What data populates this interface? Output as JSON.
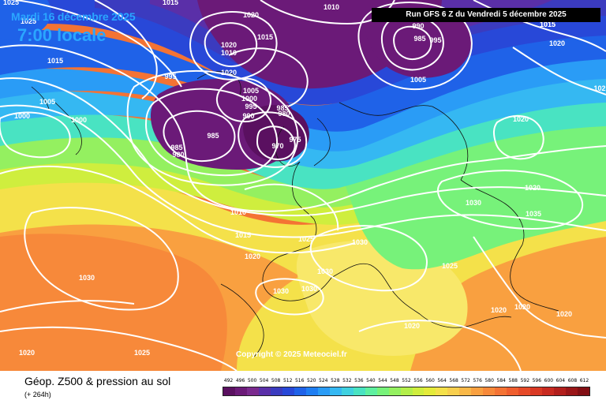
{
  "header": {
    "valid_date": "Mardi 16 décembre 2025",
    "valid_time": "7:00 locale",
    "run_label": "Run GFS 6 Z du Vendredi 5 décembre 2025"
  },
  "footer": {
    "title": "Géop. Z500 & pression au sol",
    "forecast_range": "(+ 264h)",
    "copyright": "Copyright © 2025 Meteociel.fr"
  },
  "legend": {
    "title": "",
    "values": [
      "492",
      "496",
      "500",
      "504",
      "508",
      "512",
      "516",
      "520",
      "524",
      "528",
      "532",
      "536",
      "540",
      "544",
      "548",
      "552",
      "556",
      "560",
      "564",
      "568",
      "572",
      "576",
      "580",
      "584",
      "588",
      "592",
      "596",
      "600",
      "604",
      "608",
      "612"
    ],
    "colors": [
      "#5a1060",
      "#6b1a78",
      "#7a2a8e",
      "#5a2fa8",
      "#3b3bbf",
      "#2848d8",
      "#1f62e8",
      "#1f7ef2",
      "#2a9cf6",
      "#35b8f2",
      "#3fd1e0",
      "#49e3c2",
      "#5ef0a0",
      "#77f27a",
      "#94f060",
      "#b3ef4a",
      "#cfee3e",
      "#e4eb3a",
      "#f4e14a",
      "#f8cf4e",
      "#f9b848",
      "#f9a040",
      "#f7893a",
      "#f47334",
      "#ef5e2e",
      "#e64a28",
      "#d93924",
      "#c82a20",
      "#b21f1c",
      "#9a1618",
      "#820f14"
    ]
  },
  "map": {
    "isobar_labels": [
      {
        "text": "1025"
      },
      {
        "text": "1025"
      },
      {
        "text": "1015"
      },
      {
        "text": "1020"
      },
      {
        "text": "1010"
      },
      {
        "text": "1015"
      },
      {
        "text": "1015"
      },
      {
        "text": "1020"
      },
      {
        "text": "995"
      },
      {
        "text": "1005"
      },
      {
        "text": "1000"
      },
      {
        "text": "1000"
      },
      {
        "text": "1010"
      },
      {
        "text": "1020"
      },
      {
        "text": "1005"
      },
      {
        "text": "1000"
      },
      {
        "text": "995"
      },
      {
        "text": "990"
      },
      {
        "text": "985"
      },
      {
        "text": "980"
      },
      {
        "text": "985"
      },
      {
        "text": "985"
      },
      {
        "text": "980"
      },
      {
        "text": "970"
      },
      {
        "text": "975"
      },
      {
        "text": "990"
      },
      {
        "text": "985"
      },
      {
        "text": "995"
      },
      {
        "text": "1005"
      },
      {
        "text": "1015"
      },
      {
        "text": "1020"
      },
      {
        "text": "1020"
      },
      {
        "text": "1010"
      },
      {
        "text": "1015"
      },
      {
        "text": "1020"
      },
      {
        "text": "1030"
      },
      {
        "text": "1025"
      },
      {
        "text": "1030"
      },
      {
        "text": "1030"
      },
      {
        "text": "1030"
      },
      {
        "text": "1030"
      },
      {
        "text": "1030"
      },
      {
        "text": "1035"
      },
      {
        "text": "1025"
      },
      {
        "text": "1020"
      },
      {
        "text": "1020"
      },
      {
        "text": "1020"
      },
      {
        "text": "1020"
      },
      {
        "text": "1025"
      },
      {
        "text": "1020"
      },
      {
        "text": "1015"
      },
      {
        "text": "1020"
      },
      {
        "text": "102"
      }
    ]
  }
}
